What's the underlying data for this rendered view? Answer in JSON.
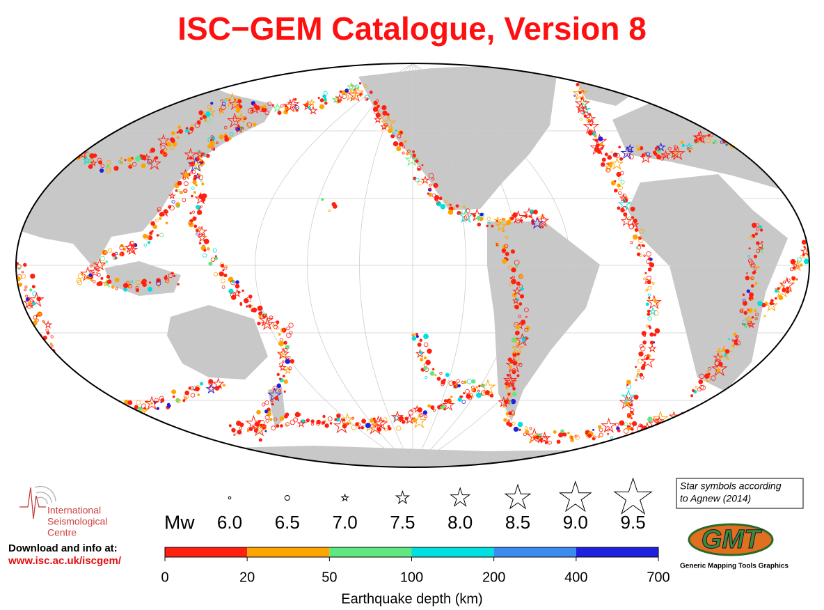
{
  "title": "ISC−GEM Catalogue, Version 8",
  "legend": {
    "magnitude_label": "Mw",
    "magnitudes": [
      "6.0",
      "6.5",
      "7.0",
      "7.5",
      "8.0",
      "8.5",
      "9.0",
      "9.5"
    ],
    "note": [
      "Star symbols according",
      "to Agnew (2014)"
    ]
  },
  "depth_scale": {
    "label": "Earthquake depth (km)",
    "ticks": [
      0,
      20,
      50,
      100,
      200,
      400,
      700
    ],
    "colors": [
      "#ff2010",
      "#ffa500",
      "#60e880",
      "#00e0e0",
      "#3c8cf0",
      "#2020e0"
    ]
  },
  "logo": {
    "org": [
      "International",
      "Seismological",
      "Centre"
    ],
    "download": "Download and info at:",
    "url": "www.isc.ac.uk/iscgem/"
  },
  "gmt_logo": {
    "text": "GMT",
    "caption": "Generic Mapping Tools Graphics"
  }
}
